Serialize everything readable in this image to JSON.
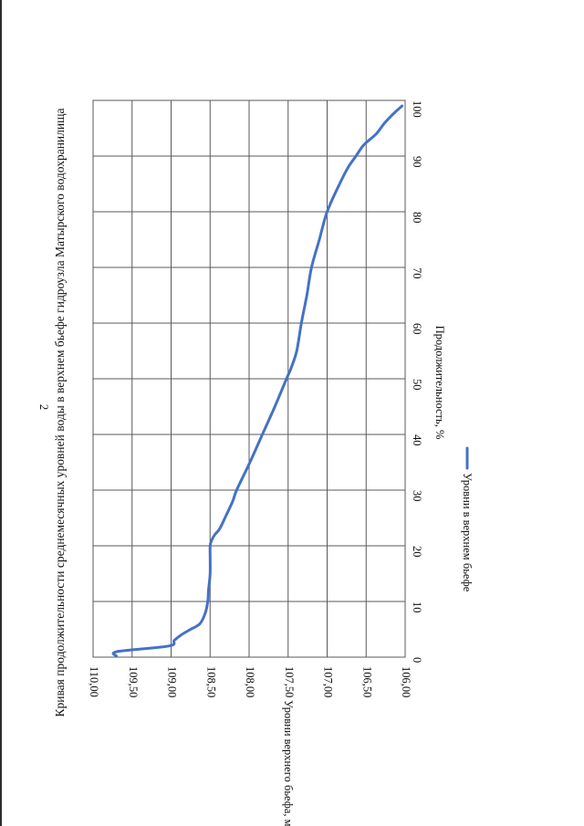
{
  "page_number": "2",
  "colors": {
    "series": "#4472C4",
    "grid": "#595959",
    "text": "#111111"
  },
  "chart_data": {
    "type": "line",
    "title": "Кривая продолжительности среднемесячных уровней воды в верхнем бьефе гидроузла Матырского водохранилища",
    "xlabel": "Продолжительность, %",
    "ylabel": "Уровни верхнего бьефа, м",
    "xlim": [
      0,
      100
    ],
    "ylim": [
      106,
      110
    ],
    "x_ticks": [
      "0",
      "10",
      "20",
      "30",
      "40",
      "50",
      "60",
      "70",
      "80",
      "90",
      "100"
    ],
    "y_ticks": [
      "106,00",
      "106,50",
      "107,00",
      "107,50",
      "108,00",
      "108,50",
      "109,00",
      "109,50",
      "110,00"
    ],
    "grid": true,
    "legend_position": "bottom",
    "series": [
      {
        "name": "Уровни в верхнем бьефе",
        "x": [
          0.2,
          1,
          2,
          3,
          4,
          5,
          6,
          8,
          10,
          12,
          15,
          18,
          20,
          21,
          22,
          23,
          25,
          28,
          30,
          35,
          40,
          45,
          50,
          52,
          55,
          60,
          65,
          70,
          75,
          80,
          85,
          88,
          90,
          92,
          94,
          96,
          98,
          99
        ],
        "y": [
          109.7,
          109.69,
          109.03,
          108.96,
          108.87,
          108.75,
          108.63,
          108.56,
          108.53,
          108.52,
          108.5,
          108.5,
          108.5,
          108.48,
          108.44,
          108.38,
          108.31,
          108.21,
          108.16,
          107.99,
          107.83,
          107.67,
          107.52,
          107.46,
          107.39,
          107.33,
          107.26,
          107.2,
          107.1,
          107.0,
          106.84,
          106.73,
          106.63,
          106.53,
          106.37,
          106.26,
          106.12,
          106.04
        ]
      }
    ]
  }
}
